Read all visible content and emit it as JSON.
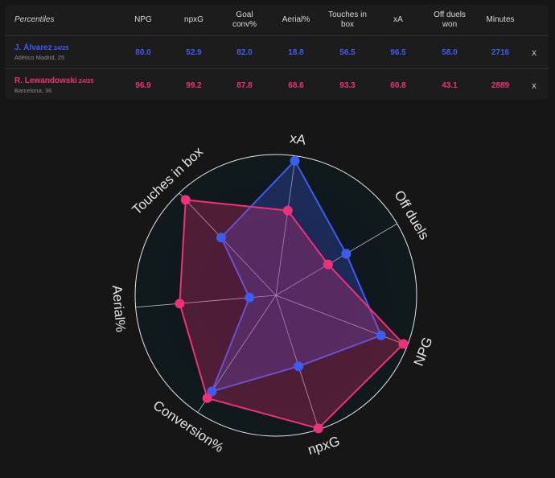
{
  "table": {
    "header_label": "Percentiles",
    "columns": [
      "NPG",
      "npxG",
      "Goal\nconv%",
      "Aerial%",
      "Touches in\nbox",
      "xA",
      "Off duels\nwon",
      "Minutes"
    ],
    "close_label": "x",
    "players": [
      {
        "name": "J. Álvarez",
        "season": "24/25",
        "club": "Atlético Madrid, 25",
        "color": "#3f5cf0",
        "values": [
          "80.0",
          "52.9",
          "82.0",
          "18.8",
          "56.5",
          "96.5",
          "58.0",
          "2716"
        ]
      },
      {
        "name": "R. Lewandowski",
        "season": "24/25",
        "club": "Barcelona, 36",
        "color": "#f0307a",
        "values": [
          "96.9",
          "99.2",
          "87.8",
          "68.6",
          "93.3",
          "60.8",
          "43.1",
          "2889"
        ]
      }
    ]
  },
  "chart_data": {
    "type": "radar",
    "axes": [
      "xA",
      "Off duels",
      "NPG",
      "npxG",
      "Conversion%",
      "Aerial%",
      "Touches in box"
    ],
    "range": [
      0,
      100
    ],
    "series": [
      {
        "name": "J. Álvarez",
        "color": "#3f5cf0",
        "values": [
          96.5,
          58.0,
          80.0,
          52.9,
          82.0,
          18.8,
          56.5
        ]
      },
      {
        "name": "R. Lewandowski",
        "color": "#f0307a",
        "values": [
          60.8,
          43.1,
          96.9,
          99.2,
          87.8,
          68.6,
          93.3
        ]
      }
    ]
  }
}
